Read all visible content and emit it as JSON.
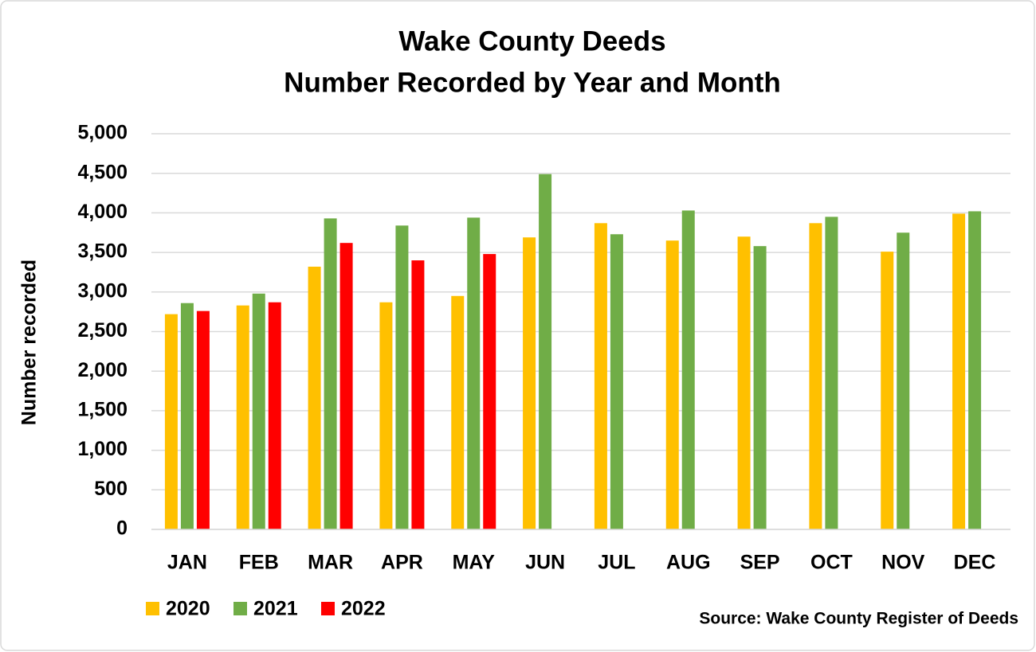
{
  "chart_data": {
    "type": "bar",
    "title": "Wake County Deeds",
    "subtitle": "Number Recorded by Year and Month",
    "y_label": "Number recorded",
    "source": "Source: Wake County Register of Deeds",
    "categories": [
      "JAN",
      "FEB",
      "MAR",
      "APR",
      "MAY",
      "JUN",
      "JUL",
      "AUG",
      "SEP",
      "OCT",
      "NOV",
      "DEC"
    ],
    "series": [
      {
        "name": "2020",
        "color": "#ffc000",
        "values": [
          2720,
          2830,
          3320,
          2870,
          2950,
          3690,
          3870,
          3650,
          3700,
          3870,
          3510,
          3990
        ]
      },
      {
        "name": "2021",
        "color": "#70ad47",
        "values": [
          2860,
          2980,
          3930,
          3840,
          3940,
          4490,
          3730,
          4030,
          3580,
          3950,
          3750,
          4020
        ]
      },
      {
        "name": "2022",
        "color": "#ff0000",
        "values": [
          2760,
          2870,
          3620,
          3400,
          3480,
          null,
          null,
          null,
          null,
          null,
          null,
          null
        ]
      }
    ],
    "ylim": [
      0,
      5000
    ],
    "yticks": [
      0,
      500,
      {
        "value": 1000,
        "label": "1,000"
      },
      {
        "value": 1500,
        "label": "1,500"
      },
      {
        "value": 2000,
        "label": "2,000"
      },
      {
        "value": 2500,
        "label": "2,500"
      },
      {
        "value": 3000,
        "label": "3,000"
      },
      {
        "value": 3500,
        "label": "3,500"
      },
      {
        "value": 4000,
        "label": "4,000"
      },
      {
        "value": 4500,
        "label": "4,500"
      },
      {
        "value": 5000,
        "label": "5,000"
      }
    ],
    "grid": true,
    "legend": "bottom-left"
  }
}
